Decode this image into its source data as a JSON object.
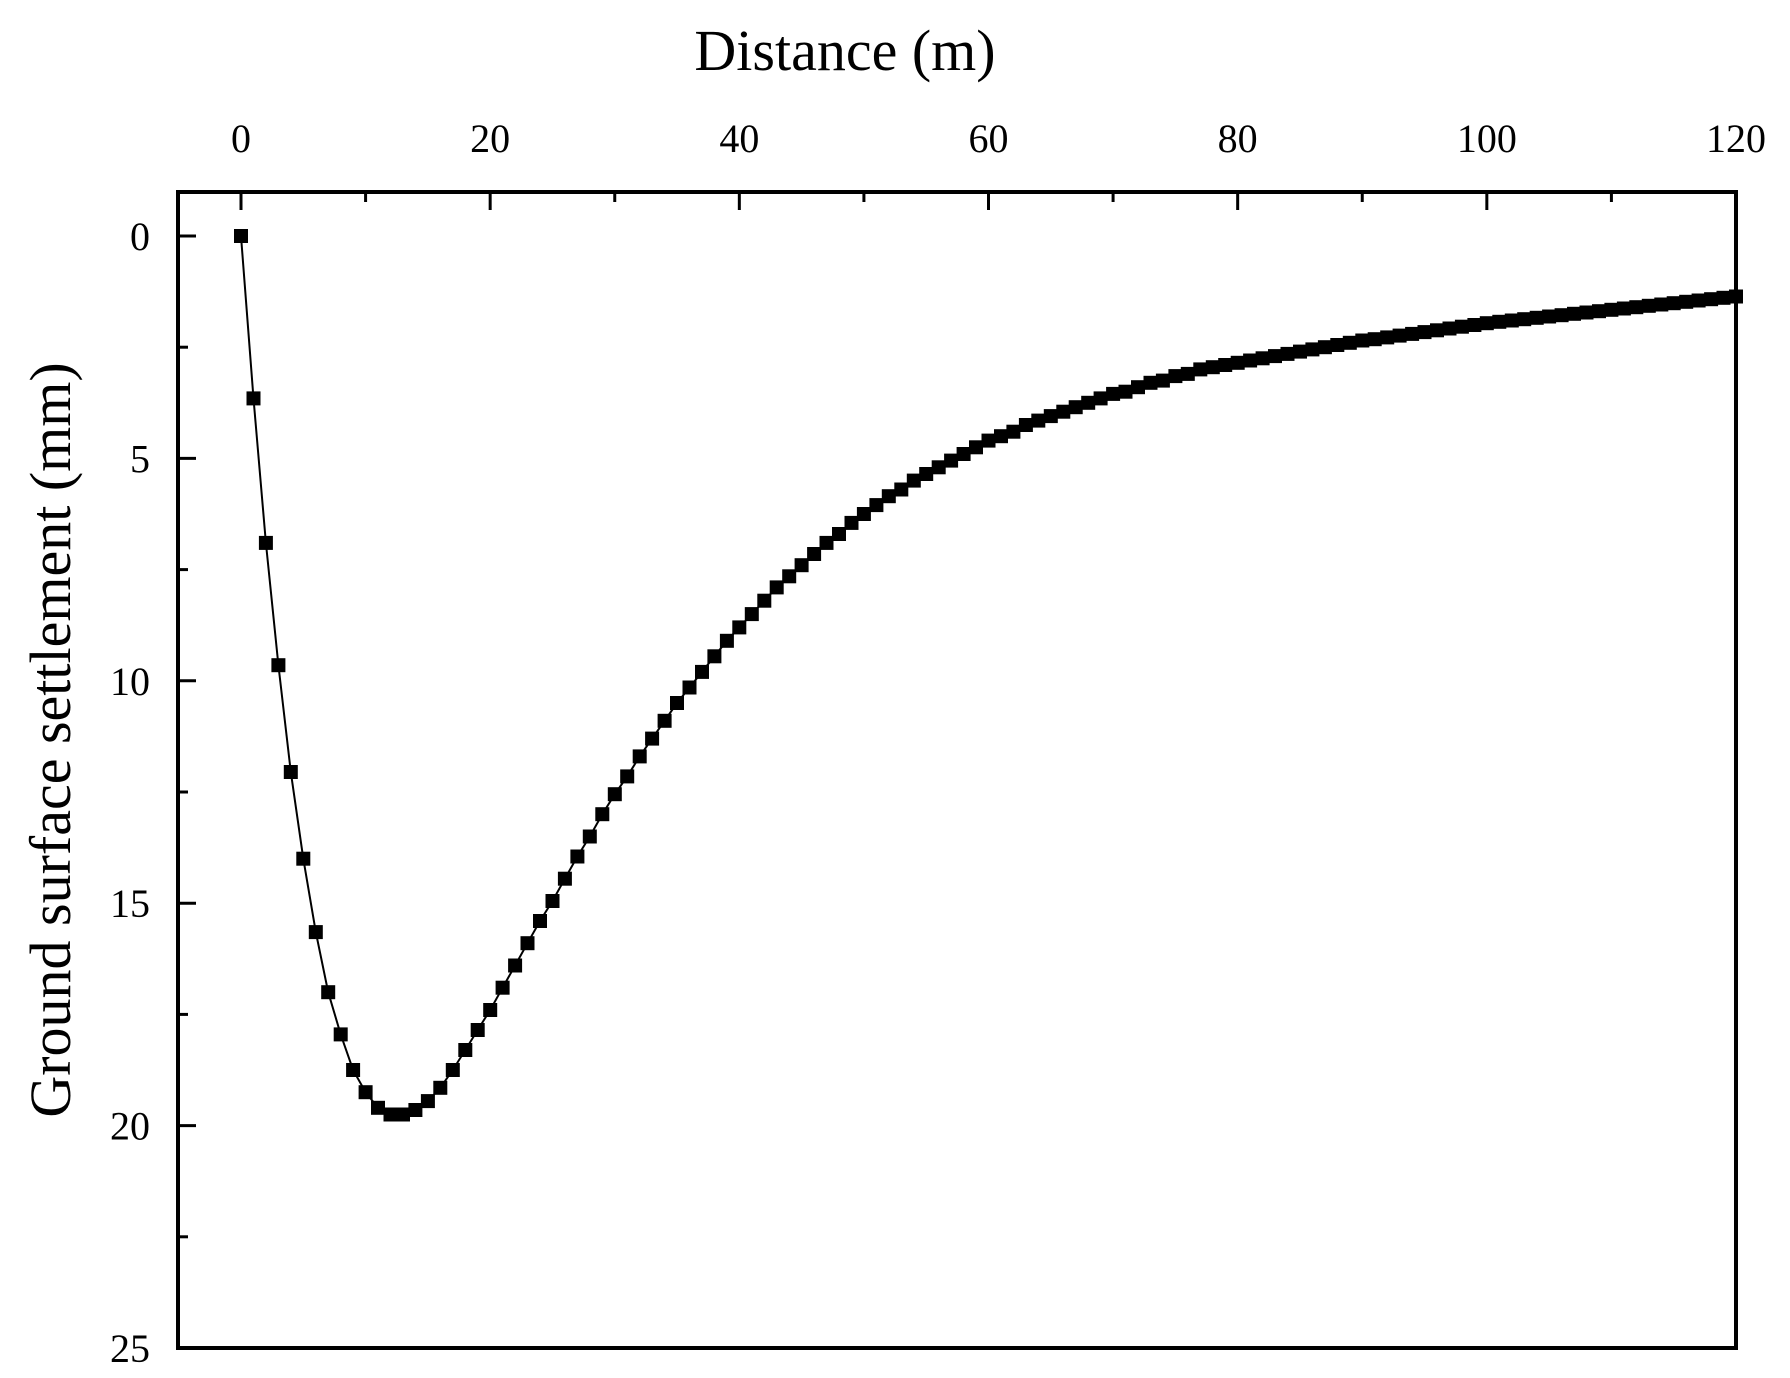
{
  "chart_data": {
    "type": "scatter",
    "title": "",
    "xlabel": "Distance (m)",
    "ylabel": "Ground surface settlement (mm)",
    "xlim": [
      0,
      120
    ],
    "ylim": [
      0,
      25
    ],
    "y_inverted": true,
    "x_axis_position": "top",
    "grid": false,
    "legend": "none",
    "x_ticks": [
      0,
      20,
      40,
      60,
      80,
      100,
      120
    ],
    "y_ticks": [
      0,
      5,
      10,
      15,
      20,
      25
    ],
    "x_tick_labels": [
      "0",
      "20",
      "40",
      "60",
      "80",
      "100",
      "120"
    ],
    "y_tick_labels": [
      "0",
      "5",
      "10",
      "15",
      "20",
      "25"
    ],
    "series": [
      {
        "marker": "square",
        "line": true,
        "color": "#000000",
        "x": [
          0,
          1,
          2,
          3,
          4,
          5,
          6,
          7,
          8,
          9,
          10,
          11,
          12,
          13,
          14,
          15,
          16,
          17,
          18,
          19,
          20,
          21,
          22,
          23,
          24,
          25,
          26,
          27,
          28,
          29,
          30,
          31,
          32,
          33,
          34,
          35,
          36,
          37,
          38,
          39,
          40,
          41,
          42,
          43,
          44,
          45,
          46,
          47,
          48,
          49,
          50,
          51,
          52,
          53,
          54,
          55,
          56,
          57,
          58,
          59,
          60,
          61,
          62,
          63,
          64,
          65,
          66,
          67,
          68,
          69,
          70,
          71,
          72,
          73,
          74,
          75,
          76,
          77,
          78,
          79,
          80,
          81,
          82,
          83,
          84,
          85,
          86,
          87,
          88,
          89,
          90,
          91,
          92,
          93,
          94,
          95,
          96,
          97,
          98,
          99,
          100,
          101,
          102,
          103,
          104,
          105,
          106,
          107,
          108,
          109,
          110,
          111,
          112,
          113,
          114,
          115,
          116,
          117,
          118,
          119,
          120
        ],
        "y": [
          0.0,
          3.65,
          6.9,
          9.65,
          12.05,
          14.0,
          15.65,
          17.0,
          17.95,
          18.75,
          19.25,
          19.6,
          19.75,
          19.75,
          19.65,
          19.45,
          19.15,
          18.75,
          18.3,
          17.85,
          17.4,
          16.9,
          16.4,
          15.9,
          15.4,
          14.95,
          14.45,
          13.95,
          13.5,
          13.0,
          12.55,
          12.15,
          11.7,
          11.3,
          10.9,
          10.5,
          10.15,
          9.8,
          9.45,
          9.1,
          8.8,
          8.5,
          8.2,
          7.9,
          7.65,
          7.4,
          7.15,
          6.9,
          6.7,
          6.45,
          6.25,
          6.05,
          5.85,
          5.7,
          5.5,
          5.35,
          5.2,
          5.05,
          4.9,
          4.75,
          4.6,
          4.5,
          4.4,
          4.25,
          4.15,
          4.05,
          3.95,
          3.85,
          3.75,
          3.65,
          3.55,
          3.5,
          3.4,
          3.3,
          3.25,
          3.15,
          3.1,
          3.0,
          2.95,
          2.9,
          2.85,
          2.8,
          2.75,
          2.7,
          2.65,
          2.6,
          2.55,
          2.5,
          2.45,
          2.4,
          2.35,
          2.32,
          2.28,
          2.24,
          2.2,
          2.16,
          2.12,
          2.08,
          2.04,
          2.0,
          1.96,
          1.93,
          1.9,
          1.87,
          1.84,
          1.81,
          1.78,
          1.75,
          1.72,
          1.69,
          1.66,
          1.63,
          1.6,
          1.57,
          1.54,
          1.51,
          1.48,
          1.45,
          1.42,
          1.39,
          1.36
        ]
      }
    ]
  }
}
